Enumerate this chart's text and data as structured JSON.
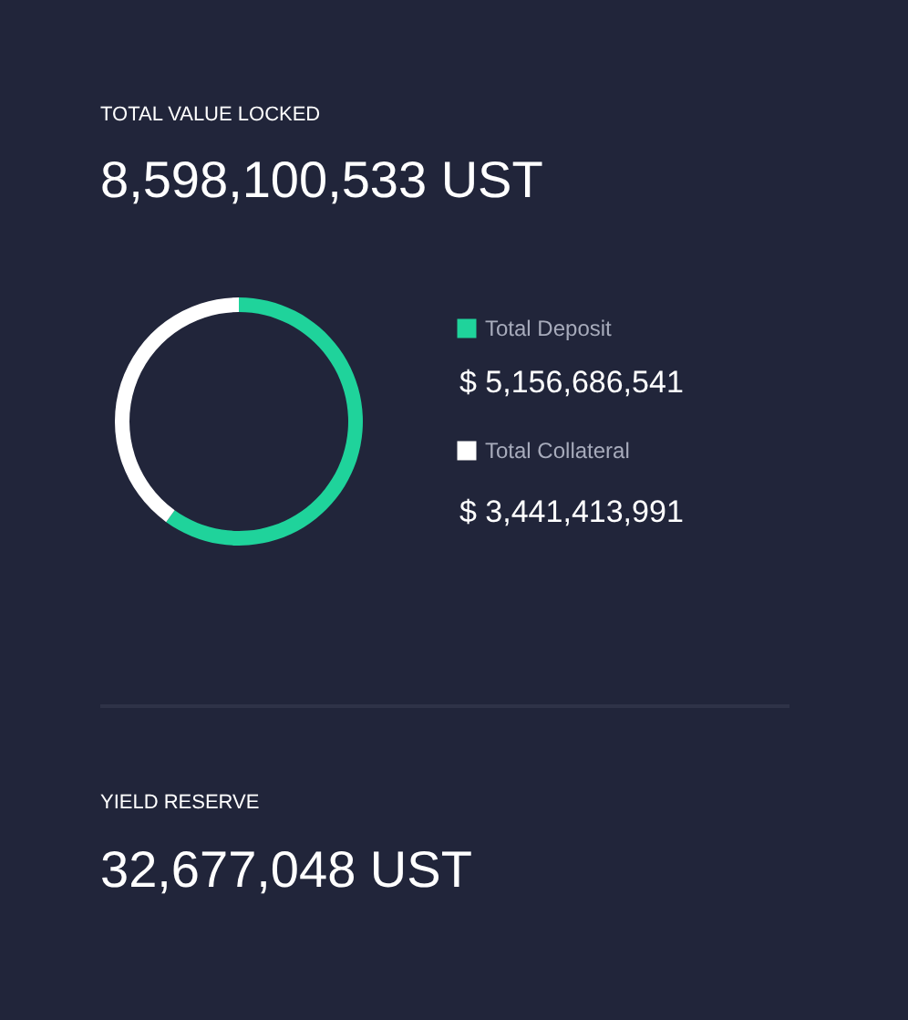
{
  "chart_data": {
    "type": "donut",
    "title": "TOTAL VALUE LOCKED",
    "subtitle": "8,598,100,533 UST",
    "categories": [
      "Total Deposit",
      "Total Collateral"
    ],
    "values": [
      5156686541,
      3441413991
    ],
    "colors": [
      "#1fd39b",
      "#ffffff"
    ],
    "value_labels": [
      "$ 5,156,686,541",
      "$ 3,441,413,991"
    ],
    "legend": "right",
    "annotations": [
      "YIELD RESERVE",
      "32,677,048 UST"
    ]
  }
}
